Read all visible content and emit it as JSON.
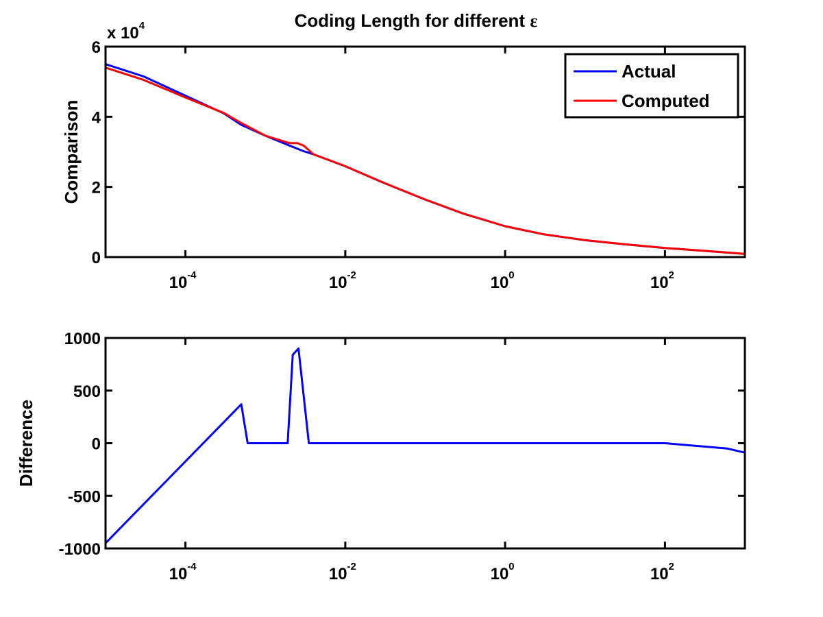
{
  "figure": {
    "title_main": "Coding Length for different ",
    "title_symbol": "ε"
  },
  "chart_data": [
    {
      "type": "line",
      "xscale": "log",
      "xlim": [
        1e-05,
        1000
      ],
      "ylim": [
        0,
        60000
      ],
      "ylabel": "Comparison",
      "multiplier_label": "x 10",
      "multiplier_exp": "4",
      "xticks": [
        {
          "value": 0.0001,
          "base": "10",
          "exp": "-4"
        },
        {
          "value": 0.01,
          "base": "10",
          "exp": "-2"
        },
        {
          "value": 1,
          "base": "10",
          "exp": "0"
        },
        {
          "value": 100,
          "base": "10",
          "exp": "2"
        }
      ],
      "yticks": [
        {
          "value": 0,
          "label": "0"
        },
        {
          "value": 20000,
          "label": "2"
        },
        {
          "value": 40000,
          "label": "4"
        },
        {
          "value": 60000,
          "label": "6"
        }
      ],
      "legend": {
        "position": "top-right",
        "entries": [
          "Actual",
          "Computed"
        ]
      },
      "series": [
        {
          "name": "Actual",
          "color": "#0000ff",
          "x": [
            1e-05,
            3e-05,
            0.0001,
            0.0003,
            0.0005,
            0.001,
            0.002,
            0.003,
            0.004,
            0.01,
            0.03,
            0.1,
            0.3,
            1,
            3,
            10,
            30,
            100,
            300,
            1000
          ],
          "y": [
            55000,
            51500,
            46000,
            41000,
            37700,
            34600,
            31800,
            30200,
            29300,
            25900,
            21200,
            16400,
            12400,
            8800,
            6500,
            4800,
            3700,
            2600,
            1800,
            900
          ]
        },
        {
          "name": "Computed",
          "color": "#ff0000",
          "x": [
            1e-05,
            3e-05,
            0.0001,
            0.0003,
            0.0005,
            0.001,
            0.002,
            0.0025,
            0.003,
            0.004,
            0.01,
            0.03,
            0.1,
            0.3,
            1,
            3,
            10,
            30,
            100,
            300,
            1000
          ],
          "y": [
            54000,
            50500,
            45500,
            41100,
            38200,
            34600,
            32500,
            32500,
            31800,
            29300,
            25900,
            21200,
            16400,
            12400,
            8800,
            6500,
            4800,
            3700,
            2600,
            1800,
            900
          ]
        }
      ]
    },
    {
      "type": "line",
      "xscale": "log",
      "xlim": [
        1e-05,
        1000
      ],
      "ylim": [
        -1000,
        1000
      ],
      "ylabel": "Difference",
      "xticks": [
        {
          "value": 0.0001,
          "base": "10",
          "exp": "-4"
        },
        {
          "value": 0.01,
          "base": "10",
          "exp": "-2"
        },
        {
          "value": 1,
          "base": "10",
          "exp": "0"
        },
        {
          "value": 100,
          "base": "10",
          "exp": "2"
        }
      ],
      "yticks": [
        {
          "value": -1000,
          "label": "-1000"
        },
        {
          "value": -500,
          "label": "-500"
        },
        {
          "value": 0,
          "label": "0"
        },
        {
          "value": 500,
          "label": "500"
        },
        {
          "value": 1000,
          "label": "1000"
        }
      ],
      "series": [
        {
          "color": "#0000ff",
          "x": [
            1e-05,
            0.0005,
            0.0006,
            0.0019,
            0.0022,
            0.0026,
            0.0035,
            0.01,
            1,
            100,
            600,
            1000
          ],
          "y": [
            -950,
            370,
            0,
            0,
            840,
            900,
            0,
            0,
            0,
            0,
            -50,
            -90
          ]
        }
      ]
    }
  ]
}
